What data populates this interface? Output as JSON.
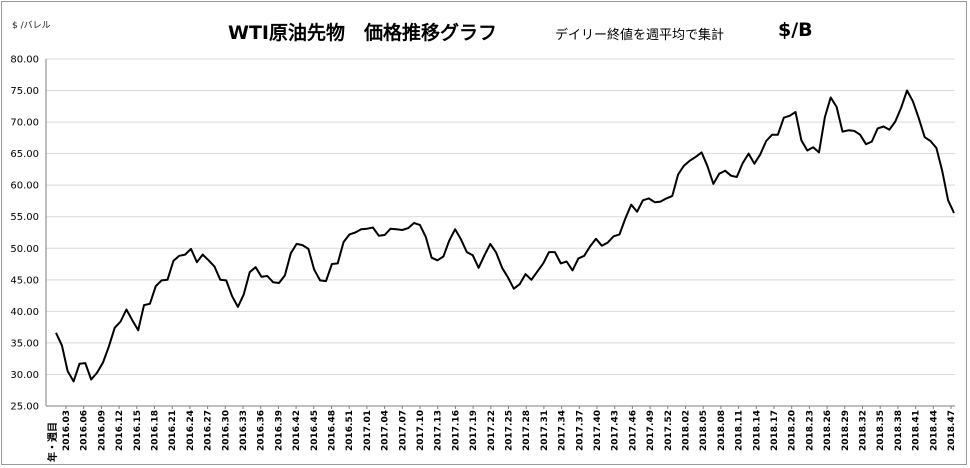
{
  "header": {
    "title": "WTI原油先物　価格推移グラフ",
    "subtitle": "デイリー終値を週平均で集計",
    "unit": "$/B"
  },
  "colors": {
    "line": "#000000",
    "grid": "#d9d9d9",
    "frame": "#9a9a9a"
  },
  "chart_data": {
    "type": "line",
    "title": "WTI原油先物　価格推移グラフ",
    "ylabel": "$ /バレル",
    "xlabel": "年・週目",
    "ylim": [
      25,
      80
    ],
    "yticks": [
      "25.00",
      "30.00",
      "35.00",
      "40.00",
      "45.00",
      "50.00",
      "55.00",
      "60.00",
      "65.00",
      "70.00",
      "75.00",
      "80.00"
    ],
    "grid": "horizontal",
    "xtick_labels": [
      "2016.03",
      "2016.06",
      "2016.09",
      "2016.12",
      "2016.15",
      "2016.18",
      "2016.21",
      "2016.24",
      "2016.27",
      "2016.30",
      "2016.33",
      "2016.36",
      "2016.39",
      "2016.42",
      "2016.45",
      "2016.48",
      "2016.51",
      "2017.01",
      "2017.04",
      "2017.07",
      "2017.10",
      "2017.13",
      "2017.16",
      "2017.19",
      "2017.22",
      "2017.25",
      "2017.28",
      "2017.31",
      "2017.34",
      "2017.37",
      "2017.40",
      "2017.43",
      "2017.46",
      "2017.49",
      "2017.52",
      "2018.02",
      "2018.05",
      "2018.08",
      "2018.11",
      "2018.14",
      "2018.17",
      "2018.20",
      "2018.23",
      "2018.26",
      "2018.29",
      "2018.32",
      "2018.35",
      "2018.38",
      "2018.41",
      "2018.44",
      "2018.47"
    ],
    "series": [
      {
        "values": [
          36.6,
          34.6,
          30.5,
          28.9,
          31.7,
          31.8,
          29.2,
          30.3,
          31.9,
          34.4,
          37.4,
          38.4,
          40.3,
          38.6,
          37.0,
          41.0,
          41.2,
          44.0,
          44.9,
          45.0,
          48.0,
          48.8,
          49.0,
          49.9,
          47.8,
          49.0,
          48.1,
          47.1,
          45.0,
          44.9,
          42.4,
          40.7,
          42.7,
          46.2,
          47.0,
          45.5,
          45.6,
          44.6,
          44.5,
          45.7,
          49.2,
          50.7,
          50.5,
          49.9,
          46.6,
          44.9,
          44.8,
          47.5,
          47.6,
          51.0,
          52.2,
          52.5,
          53.0,
          53.1,
          53.3,
          52.0,
          52.1,
          53.1,
          53.0,
          52.9,
          53.2,
          54.0,
          53.7,
          51.8,
          48.5,
          48.1,
          48.7,
          51.2,
          53.0,
          51.4,
          49.4,
          48.9,
          46.9,
          48.9,
          50.7,
          49.3,
          46.9,
          45.4,
          43.6,
          44.3,
          45.9,
          45.0,
          46.3,
          47.6,
          49.4,
          49.4,
          47.6,
          47.9,
          46.5,
          48.4,
          48.8,
          50.3,
          51.5,
          50.4,
          50.9,
          51.9,
          52.2,
          54.7,
          56.9,
          55.8,
          57.6,
          57.9,
          57.3,
          57.4,
          57.9,
          58.3,
          61.7,
          63.1,
          63.9,
          64.5,
          65.2,
          63.0,
          60.2,
          61.8,
          62.3,
          61.5,
          61.3,
          63.5,
          65.0,
          63.4,
          64.9,
          67.0,
          68.0,
          68.0,
          70.7,
          71.0,
          71.6,
          67.1,
          65.5,
          66.0,
          65.2,
          70.8,
          73.9,
          72.4,
          68.5,
          68.7,
          68.6,
          68.0,
          66.5,
          66.9,
          69.0,
          69.3,
          68.8,
          70.1,
          72.3,
          75.0,
          73.3,
          70.6,
          67.6,
          67.0,
          65.9,
          62.2,
          57.6,
          55.6
        ]
      }
    ]
  }
}
